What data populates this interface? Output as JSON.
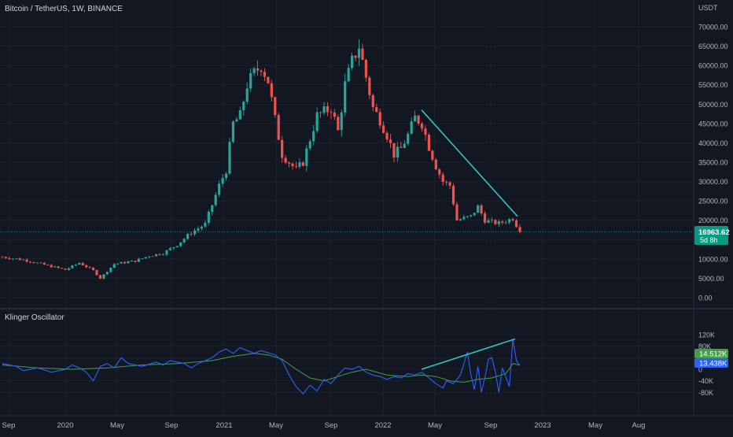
{
  "symbol_title": "Bitcoin / TetherUS, 1W, BINANCE",
  "price_unit": "USDT",
  "last_price_tag": "16963.62",
  "countdown_tag": "5d 8h",
  "oscillator_title": "Klinger Oscillator",
  "osc_tag_signal": "14.512K",
  "osc_tag_kvo": "13.438K",
  "colors": {
    "background": "#131722",
    "grid": "#2a2e39",
    "up": "#26a69a",
    "down": "#ef5350",
    "trendline": "#2ec4c4",
    "kvo_line": "#2962ff",
    "signal_line": "#43a047",
    "price_tag_bg": "#089981",
    "text": "#b2b5be"
  },
  "chart_data": [
    {
      "type": "candlestick",
      "title": "Bitcoin / TetherUS, 1W, BINANCE",
      "y_unit": "USDT",
      "ylim": [
        -2000,
        75000
      ],
      "y_ticks": [
        0,
        5000,
        10000,
        15000,
        20000,
        25000,
        30000,
        35000,
        40000,
        45000,
        50000,
        55000,
        60000,
        65000,
        70000
      ],
      "y_tick_labels": [
        "0.00",
        "5000.00",
        "10000.00",
        "15000.00",
        "20000.00",
        "25000.00",
        "30000.00",
        "35000.00",
        "40000.00",
        "45000.00",
        "50000.00",
        "55000.00",
        "60000.00",
        "65000.00",
        "70000.00"
      ],
      "x_tick_labels": [
        "Sep",
        "2020",
        "May",
        "Sep",
        "2021",
        "May",
        "Sep",
        "2022",
        "May",
        "Sep",
        "2023",
        "May",
        "Aug"
      ],
      "last_price": 16963.62,
      "grid": true,
      "close_path": [
        [
          0,
          10500
        ],
        [
          6,
          9800
        ],
        [
          12,
          8500
        ],
        [
          18,
          7200
        ],
        [
          22,
          9000
        ],
        [
          26,
          7000
        ],
        [
          28,
          5000
        ],
        [
          32,
          8700
        ],
        [
          38,
          9500
        ],
        [
          42,
          10800
        ],
        [
          46,
          11500
        ],
        [
          50,
          13700
        ],
        [
          54,
          16800
        ],
        [
          58,
          19000
        ],
        [
          62,
          29000
        ],
        [
          64,
          33000
        ],
        [
          66,
          45000
        ],
        [
          68,
          47000
        ],
        [
          70,
          55000
        ],
        [
          72,
          58000
        ],
        [
          74,
          60000
        ],
        [
          76,
          56000
        ],
        [
          78,
          46000
        ],
        [
          80,
          37000
        ],
        [
          84,
          33000
        ],
        [
          86,
          35000
        ],
        [
          88,
          41000
        ],
        [
          90,
          47000
        ],
        [
          94,
          49000
        ],
        [
          96,
          43000
        ],
        [
          98,
          55000
        ],
        [
          100,
          61000
        ],
        [
          102,
          65000
        ],
        [
          104,
          57000
        ],
        [
          106,
          49000
        ],
        [
          108,
          46000
        ],
        [
          110,
          42000
        ],
        [
          112,
          37000
        ],
        [
          114,
          38500
        ],
        [
          116,
          42000
        ],
        [
          118,
          46500
        ],
        [
          120,
          45000
        ],
        [
          122,
          39000
        ],
        [
          124,
          34000
        ],
        [
          126,
          30000
        ],
        [
          128,
          29000
        ],
        [
          130,
          20000
        ],
        [
          134,
          21000
        ],
        [
          136,
          23500
        ],
        [
          138,
          20000
        ],
        [
          140,
          19500
        ],
        [
          142,
          19200
        ],
        [
          146,
          20500
        ],
        [
          148,
          17000
        ]
      ],
      "trendline": {
        "start": [
          "Mar 2022",
          48500
        ],
        "end": [
          "Nov 2022",
          21000
        ]
      }
    },
    {
      "type": "line",
      "title": "Klinger Oscillator",
      "ylim": [
        -100000,
        135000
      ],
      "y_ticks": [
        -80000,
        -40000,
        0,
        40000,
        80000,
        120000
      ],
      "y_tick_labels": [
        "-80K",
        "-40K",
        "0",
        "40K",
        "80K",
        "120K"
      ],
      "series": [
        {
          "name": "KVO",
          "points": [
            [
              0,
              20000
            ],
            [
              4,
              10000
            ],
            [
              6,
              -5000
            ],
            [
              10,
              5000
            ],
            [
              14,
              -10000
            ],
            [
              18,
              0
            ],
            [
              20,
              15000
            ],
            [
              22,
              5000
            ],
            [
              24,
              -10000
            ],
            [
              26,
              -40000
            ],
            [
              28,
              10000
            ],
            [
              30,
              20000
            ],
            [
              32,
              5000
            ],
            [
              34,
              40000
            ],
            [
              36,
              20000
            ],
            [
              40,
              10000
            ],
            [
              44,
              25000
            ],
            [
              46,
              15000
            ],
            [
              48,
              30000
            ],
            [
              52,
              20000
            ],
            [
              54,
              5000
            ],
            [
              56,
              20000
            ],
            [
              60,
              40000
            ],
            [
              62,
              60000
            ],
            [
              64,
              70000
            ],
            [
              66,
              55000
            ],
            [
              68,
              75000
            ],
            [
              72,
              55000
            ],
            [
              74,
              65000
            ],
            [
              78,
              50000
            ],
            [
              80,
              30000
            ],
            [
              82,
              -20000
            ],
            [
              84,
              -60000
            ],
            [
              86,
              -85000
            ],
            [
              88,
              -55000
            ],
            [
              90,
              -75000
            ],
            [
              92,
              -35000
            ],
            [
              94,
              -50000
            ],
            [
              96,
              -20000
            ],
            [
              98,
              5000
            ],
            [
              100,
              0
            ],
            [
              102,
              10000
            ],
            [
              104,
              -10000
            ],
            [
              106,
              -20000
            ],
            [
              108,
              -25000
            ],
            [
              110,
              -35000
            ],
            [
              112,
              -25000
            ],
            [
              114,
              -30000
            ],
            [
              116,
              -15000
            ],
            [
              118,
              -20000
            ],
            [
              120,
              -10000
            ],
            [
              122,
              -30000
            ],
            [
              124,
              -50000
            ],
            [
              126,
              -65000
            ],
            [
              127,
              -40000
            ],
            [
              129,
              -50000
            ],
            [
              131,
              -20000
            ],
            [
              132,
              20000
            ],
            [
              133,
              60000
            ],
            [
              134,
              -20000
            ],
            [
              135,
              -70000
            ],
            [
              136,
              10000
            ],
            [
              137,
              -80000
            ],
            [
              138,
              -30000
            ],
            [
              139,
              35000
            ],
            [
              140,
              40000
            ],
            [
              141,
              -10000
            ],
            [
              142,
              -80000
            ],
            [
              143,
              5000
            ],
            [
              145,
              -60000
            ],
            [
              146,
              105000
            ],
            [
              147,
              30000
            ],
            [
              148,
              13438
            ]
          ]
        },
        {
          "name": "Signal",
          "points": [
            [
              0,
              15000
            ],
            [
              10,
              5000
            ],
            [
              20,
              0
            ],
            [
              30,
              5000
            ],
            [
              40,
              15000
            ],
            [
              50,
              20000
            ],
            [
              60,
              30000
            ],
            [
              66,
              45000
            ],
            [
              72,
              55000
            ],
            [
              76,
              50000
            ],
            [
              80,
              35000
            ],
            [
              84,
              0
            ],
            [
              88,
              -30000
            ],
            [
              92,
              -40000
            ],
            [
              96,
              -25000
            ],
            [
              100,
              -10000
            ],
            [
              104,
              0
            ],
            [
              110,
              -20000
            ],
            [
              116,
              -25000
            ],
            [
              120,
              -20000
            ],
            [
              124,
              -25000
            ],
            [
              128,
              -40000
            ],
            [
              132,
              -45000
            ],
            [
              136,
              -35000
            ],
            [
              140,
              -30000
            ],
            [
              144,
              -15000
            ],
            [
              146,
              20000
            ],
            [
              148,
              14512
            ]
          ]
        }
      ],
      "trendline": {
        "start": [
          "Mar 2022",
          0
        ],
        "end": [
          "Nov 2022",
          105000
        ]
      }
    }
  ]
}
